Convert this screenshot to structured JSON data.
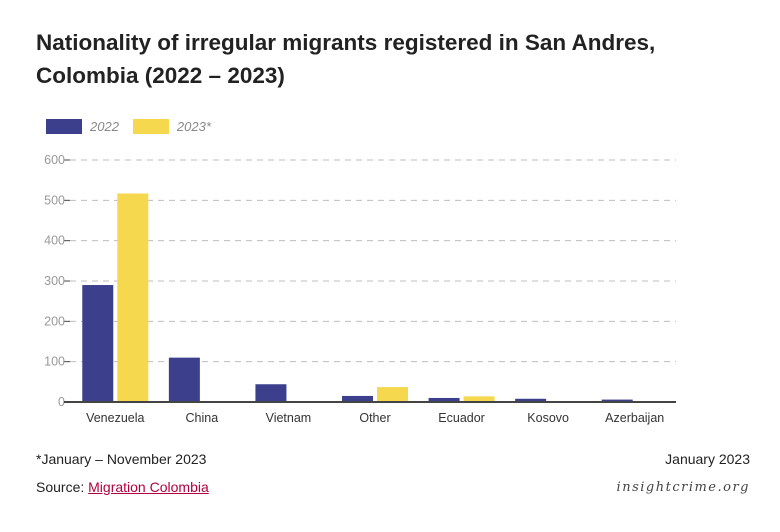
{
  "title": "Nationality of irregular migrants registered in San Andres, Colombia (2022 – 2023)",
  "colors": {
    "series_2022": "#3b3f8c",
    "series_2023": "#f5d84d",
    "grid": "#bdbdbd",
    "axis": "#444444",
    "tick_text": "#999999",
    "link": "#b3003c"
  },
  "chart_data": {
    "type": "bar",
    "title": "Nationality of irregular migrants registered in San Andres, Colombia (2022 – 2023)",
    "categories": [
      "Venezuela",
      "China",
      "Vietnam",
      "Other",
      "Ecuador",
      "Kosovo",
      "Azerbaijan"
    ],
    "series": [
      {
        "name": "2022",
        "values": [
          290,
          110,
          44,
          15,
          10,
          8,
          6
        ]
      },
      {
        "name": "2023*",
        "values": [
          517,
          0,
          0,
          37,
          14,
          0,
          0
        ]
      }
    ],
    "ylim": [
      0,
      600
    ],
    "yticks": [
      0,
      100,
      200,
      300,
      400,
      500,
      600
    ],
    "ytick_labels": [
      "0",
      "100",
      "200",
      "300",
      "400",
      "500",
      "600"
    ],
    "xlabel": "",
    "ylabel": "",
    "grid": true,
    "legend_position": "top-left"
  },
  "footer": {
    "note": "*January – November 2023",
    "date": "January 2023",
    "source_prefix": "Source: ",
    "source_link": "Migration Colombia",
    "brand": "insightcrime.org"
  }
}
